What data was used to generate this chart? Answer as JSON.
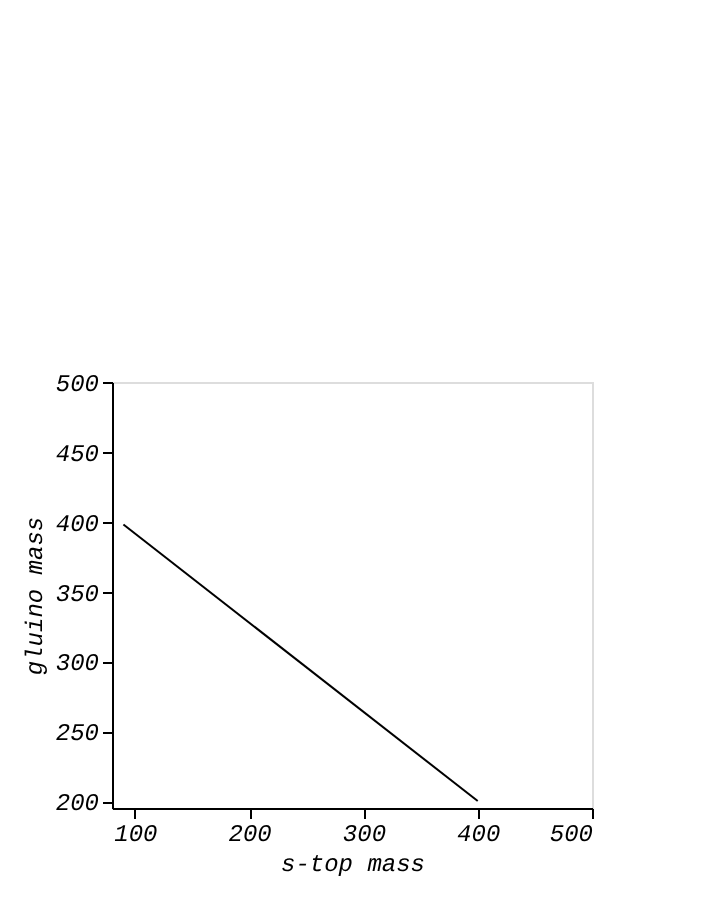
{
  "chart_data": {
    "type": "line",
    "xlabel": "s-top mass",
    "ylabel": "gluino mass",
    "x": [
      90,
      400
    ],
    "values": [
      398,
      200
    ],
    "color": "#000000",
    "xlim": [
      80,
      500
    ],
    "xticks": [
      100,
      200,
      300,
      400,
      500
    ],
    "ylim": [
      195,
      500
    ],
    "yticks": [
      200,
      250,
      300,
      350,
      400,
      450,
      500
    ],
    "grid": false
  }
}
